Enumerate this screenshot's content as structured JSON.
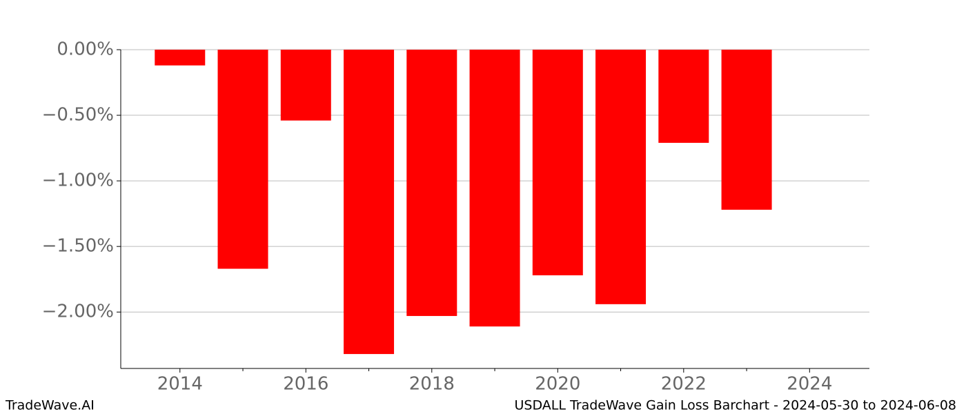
{
  "chart_data": {
    "type": "bar",
    "title": "USDALL TradeWave Gain Loss Barchart - 2024-05-30 to 2024-06-08",
    "watermark": "TradeWave.AI",
    "x": [
      2014,
      2015,
      2016,
      2017,
      2018,
      2019,
      2020,
      2021,
      2022,
      2023
    ],
    "values": [
      -0.12,
      -1.67,
      -0.54,
      -2.32,
      -2.03,
      -2.11,
      -1.72,
      -1.94,
      -0.71,
      -1.22
    ],
    "color": "#ff0000",
    "xlim": [
      2013.06,
      2024.95
    ],
    "xticks": [
      2014,
      2016,
      2018,
      2020,
      2022,
      2024
    ],
    "xminorticks": [
      2015,
      2017,
      2019,
      2021,
      2023
    ],
    "ylim": [
      -2.43,
      0
    ],
    "yticks": [
      {
        "value": 0,
        "label": "0.00%"
      },
      {
        "value": -0.5,
        "label": "−0.50%"
      },
      {
        "value": -1,
        "label": "−1.00%"
      },
      {
        "value": -1.5,
        "label": "−1.50%"
      },
      {
        "value": -2,
        "label": "−2.00%"
      }
    ],
    "grid": true
  }
}
